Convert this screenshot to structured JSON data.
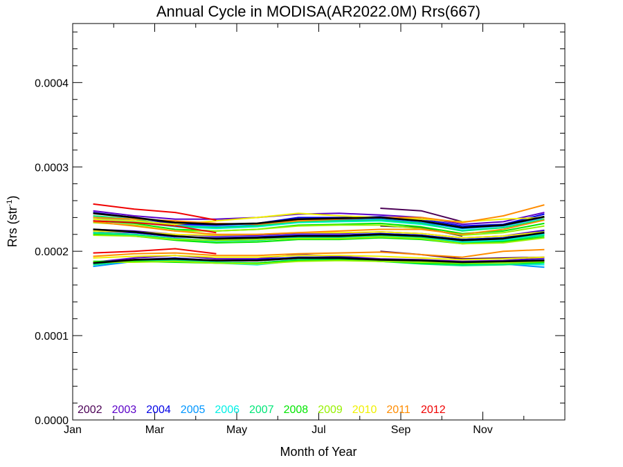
{
  "chart_data": {
    "type": "line",
    "title": "Annual Cycle in MODISA(AR2022.0M) Rrs(667)",
    "xlabel": "Month of Year",
    "ylabel": "Rrs (str",
    "ylabel_sup": "-1",
    "ylabel_end": ")",
    "xlim": [
      0,
      12
    ],
    "ylim": [
      0,
      0.00047
    ],
    "x_ticks": [
      {
        "value": 0,
        "label": "Jan"
      },
      {
        "value": 2,
        "label": "Mar"
      },
      {
        "value": 4,
        "label": "May"
      },
      {
        "value": 6,
        "label": "Jul"
      },
      {
        "value": 8,
        "label": "Sep"
      },
      {
        "value": 10,
        "label": "Nov"
      }
    ],
    "y_ticks": [
      {
        "value": 0,
        "label": "0.0000"
      },
      {
        "value": 0.0001,
        "label": "0.0001"
      },
      {
        "value": 0.0002,
        "label": "0.0002"
      },
      {
        "value": 0.0003,
        "label": "0.0003"
      },
      {
        "value": 0.0004,
        "label": "0.0004"
      }
    ],
    "x": [
      0.5,
      1.5,
      2.5,
      3.5,
      4.5,
      5.5,
      6.5,
      7.5,
      8.5,
      9.5,
      10.5,
      11.5
    ],
    "legend": [
      {
        "label": "2002",
        "color": "#4b0055"
      },
      {
        "label": "2003",
        "color": "#5a00c8"
      },
      {
        "label": "2004",
        "color": "#0000e6"
      },
      {
        "label": "2005",
        "color": "#0096ff"
      },
      {
        "label": "2006",
        "color": "#00f0e6"
      },
      {
        "label": "2007",
        "color": "#00e678"
      },
      {
        "label": "2008",
        "color": "#00e600"
      },
      {
        "label": "2009",
        "color": "#96f000"
      },
      {
        "label": "2010",
        "color": "#f0f000"
      },
      {
        "label": "2011",
        "color": "#ff8c00"
      },
      {
        "label": "2012",
        "color": "#f00000"
      }
    ],
    "series": [
      {
        "color": "#4b0055",
        "band": "upper",
        "values": [
          null,
          null,
          null,
          null,
          null,
          null,
          null,
          0.000251,
          0.000248,
          0.000235,
          null,
          null
        ]
      },
      {
        "color": "#4b0055",
        "band": "mid",
        "values": [
          null,
          null,
          null,
          null,
          null,
          null,
          null,
          0.00023,
          0.000228,
          0.000218,
          null,
          null
        ]
      },
      {
        "color": "#4b0055",
        "band": "lower",
        "values": [
          null,
          null,
          null,
          null,
          null,
          null,
          null,
          0.0002,
          0.000196,
          0.000191,
          0.000192,
          0.000193
        ]
      },
      {
        "color": "#5a00c8",
        "band": "upper",
        "values": [
          0.000248,
          0.000242,
          0.000238,
          0.000238,
          0.00024,
          0.000244,
          0.000245,
          0.000243,
          0.00024,
          0.000232,
          0.000235,
          0.000246
        ]
      },
      {
        "color": "#5a00c8",
        "band": "mid",
        "values": [
          0.000226,
          0.000224,
          0.00022,
          0.000218,
          0.000219,
          0.000221,
          0.000221,
          0.000223,
          0.000221,
          0.000216,
          0.000218,
          0.000225
        ]
      },
      {
        "color": "#5a00c8",
        "band": "lower",
        "values": [
          0.000187,
          0.000192,
          0.000195,
          0.000191,
          0.000191,
          0.000196,
          0.000194,
          0.000191,
          0.00019,
          0.000188,
          0.000189,
          0.000192
        ]
      },
      {
        "color": "#0000e6",
        "band": "upper",
        "values": [
          0.000246,
          0.00024,
          0.000232,
          0.000231,
          0.000233,
          0.00024,
          0.00024,
          0.000241,
          0.000238,
          0.00023,
          0.000232,
          0.000244
        ]
      },
      {
        "color": "#0000e6",
        "band": "mid",
        "values": [
          0.000224,
          0.000222,
          0.000217,
          0.000216,
          0.000217,
          0.000219,
          0.000219,
          0.000221,
          0.000219,
          0.000214,
          0.000216,
          0.000224
        ]
      },
      {
        "color": "#0000e6",
        "band": "lower",
        "values": [
          0.000186,
          0.00019,
          0.000192,
          0.000189,
          0.00019,
          0.000193,
          0.000193,
          0.00019,
          0.000189,
          0.000187,
          0.000188,
          0.00019
        ]
      },
      {
        "color": "#0096ff",
        "band": "upper",
        "values": [
          0.00024,
          0.000236,
          0.00023,
          0.000229,
          0.000231,
          0.000236,
          0.000237,
          0.000238,
          0.000234,
          0.000227,
          0.00023,
          0.00024
        ]
      },
      {
        "color": "#0096ff",
        "band": "mid",
        "values": [
          0.000222,
          0.00022,
          0.000215,
          0.000213,
          0.000214,
          0.000217,
          0.000217,
          0.000219,
          0.000217,
          0.000212,
          0.000214,
          0.000221
        ]
      },
      {
        "color": "#0096ff",
        "band": "lower",
        "values": [
          0.000182,
          0.000188,
          0.00019,
          0.000187,
          0.000186,
          0.00019,
          0.000191,
          0.000189,
          0.000187,
          0.000185,
          0.000185,
          0.000181
        ]
      },
      {
        "color": "#00f0e6",
        "band": "upper",
        "values": [
          0.000238,
          0.000235,
          0.000229,
          0.000227,
          0.000229,
          0.000234,
          0.000235,
          0.000236,
          0.000232,
          0.000225,
          0.000228,
          0.000237
        ]
      },
      {
        "color": "#00f0e6",
        "band": "mid",
        "values": [
          0.000221,
          0.000219,
          0.000214,
          0.000212,
          0.000213,
          0.000216,
          0.000216,
          0.000218,
          0.000216,
          0.000211,
          0.000213,
          0.00022
        ]
      },
      {
        "color": "#00f0e6",
        "band": "lower",
        "values": [
          0.000185,
          0.000189,
          0.000188,
          0.000186,
          0.000184,
          0.000189,
          0.00019,
          0.000188,
          0.000186,
          0.000184,
          0.000185,
          0.000184
        ]
      },
      {
        "color": "#00e678",
        "band": "upper",
        "values": [
          0.000242,
          0.000238,
          0.00023,
          0.000228,
          0.00023,
          0.000235,
          0.000236,
          0.000237,
          0.000233,
          0.000224,
          0.000228,
          0.000238
        ]
      },
      {
        "color": "#00e678",
        "band": "mid",
        "values": [
          0.000222,
          0.00022,
          0.000215,
          0.000212,
          0.000213,
          0.000216,
          0.000216,
          0.000218,
          0.000216,
          0.00021,
          0.000212,
          0.000219
        ]
      },
      {
        "color": "#00e678",
        "band": "lower",
        "values": [
          0.000184,
          0.000189,
          0.000189,
          0.000187,
          0.000186,
          0.00019,
          0.00019,
          0.000188,
          0.000185,
          0.000183,
          0.000184,
          0.000186
        ]
      },
      {
        "color": "#00e600",
        "band": "upper",
        "values": [
          0.000236,
          0.000233,
          0.000226,
          0.000224,
          0.000226,
          0.000231,
          0.000232,
          0.000233,
          0.000229,
          0.000221,
          0.000224,
          0.000233
        ]
      },
      {
        "color": "#00e600",
        "band": "mid",
        "values": [
          0.00022,
          0.000218,
          0.000213,
          0.00021,
          0.000211,
          0.000214,
          0.000214,
          0.000216,
          0.000214,
          0.000209,
          0.000211,
          0.000217
        ]
      },
      {
        "color": "#00e600",
        "band": "lower",
        "values": [
          0.000188,
          0.000188,
          0.000187,
          0.000186,
          0.000186,
          0.000189,
          0.00019,
          0.000188,
          0.000186,
          0.000185,
          0.000186,
          0.000187
        ]
      },
      {
        "color": "#96f000",
        "band": "upper",
        "values": [
          0.000234,
          0.000231,
          0.000224,
          0.000224,
          0.000226,
          0.00023,
          0.000231,
          0.000231,
          0.000227,
          0.000219,
          0.000222,
          0.00023
        ]
      },
      {
        "color": "#96f000",
        "band": "mid",
        "values": [
          0.000219,
          0.000218,
          0.000214,
          0.000213,
          0.000214,
          0.000215,
          0.000215,
          0.000217,
          0.000215,
          0.000209,
          0.00021,
          0.000216
        ]
      },
      {
        "color": "#96f000",
        "band": "lower",
        "values": [
          0.000187,
          0.000187,
          0.000188,
          0.000186,
          0.000185,
          0.000188,
          0.000189,
          0.000188,
          0.000187,
          0.000186,
          0.000186,
          0.000188
        ]
      },
      {
        "color": "#f0f000",
        "band": "upper",
        "values": [
          0.000238,
          0.000236,
          0.000232,
          0.000236,
          0.00024,
          0.000245,
          0.000242,
          0.00024,
          0.000238,
          0.000235,
          0.000238,
          0.00024
        ]
      },
      {
        "color": "#f0f000",
        "band": "mid",
        "values": [
          0.000224,
          0.000223,
          0.00022,
          0.000219,
          0.00022,
          0.000222,
          0.000222,
          0.000223,
          0.000221,
          0.000216,
          0.000218,
          0.000223
        ]
      },
      {
        "color": "#f0f000",
        "band": "lower",
        "values": [
          0.000192,
          0.000194,
          0.000195,
          0.000193,
          0.000193,
          0.000195,
          0.000195,
          0.000194,
          0.000192,
          0.00019,
          0.000191,
          0.000193
        ]
      },
      {
        "color": "#ff8c00",
        "band": "upper",
        "values": [
          0.00024,
          0.000238,
          0.000236,
          0.000233,
          0.000232,
          0.000236,
          0.000238,
          0.00024,
          0.00024,
          0.000234,
          0.000242,
          0.000255
        ]
      },
      {
        "color": "#ff8c00",
        "band": "mid",
        "values": [
          0.000235,
          0.00023,
          0.000224,
          0.00022,
          0.00022,
          0.000222,
          0.000224,
          0.000226,
          0.000226,
          0.00022,
          0.000226,
          0.000237
        ]
      },
      {
        "color": "#ff8c00",
        "band": "lower",
        "values": [
          0.000194,
          0.000197,
          0.000198,
          0.000195,
          0.000195,
          0.000197,
          0.000198,
          0.000199,
          0.000196,
          0.000193,
          0.0002,
          0.000202
        ]
      },
      {
        "color": "#f00000",
        "band": "upper",
        "values": [
          0.000256,
          0.00025,
          0.000246,
          0.000237,
          null,
          null,
          null,
          null,
          null,
          null,
          null,
          null
        ]
      },
      {
        "color": "#f00000",
        "band": "mid",
        "values": [
          0.000236,
          0.000234,
          0.00023,
          0.000222,
          null,
          null,
          null,
          null,
          null,
          null,
          null,
          null
        ]
      },
      {
        "color": "#f00000",
        "band": "lower",
        "values": [
          0.000198,
          0.0002,
          0.000203,
          0.000197,
          null,
          null,
          null,
          null,
          null,
          null,
          null,
          null
        ]
      },
      {
        "color": "#000000",
        "band": "upper",
        "values": [
          0.000245,
          0.00024,
          0.000234,
          0.000232,
          0.000233,
          0.000238,
          0.000239,
          0.00024,
          0.000236,
          0.000228,
          0.000231,
          0.000241
        ]
      },
      {
        "color": "#000000",
        "band": "mid",
        "values": [
          0.000226,
          0.000223,
          0.000218,
          0.000215,
          0.000216,
          0.000218,
          0.000218,
          0.00022,
          0.000218,
          0.000213,
          0.000215,
          0.000222
        ]
      },
      {
        "color": "#000000",
        "band": "lower",
        "values": [
          0.000186,
          0.00019,
          0.000191,
          0.000189,
          0.000189,
          0.000192,
          0.000192,
          0.00019,
          0.000189,
          0.000187,
          0.000188,
          0.000189
        ]
      }
    ]
  }
}
